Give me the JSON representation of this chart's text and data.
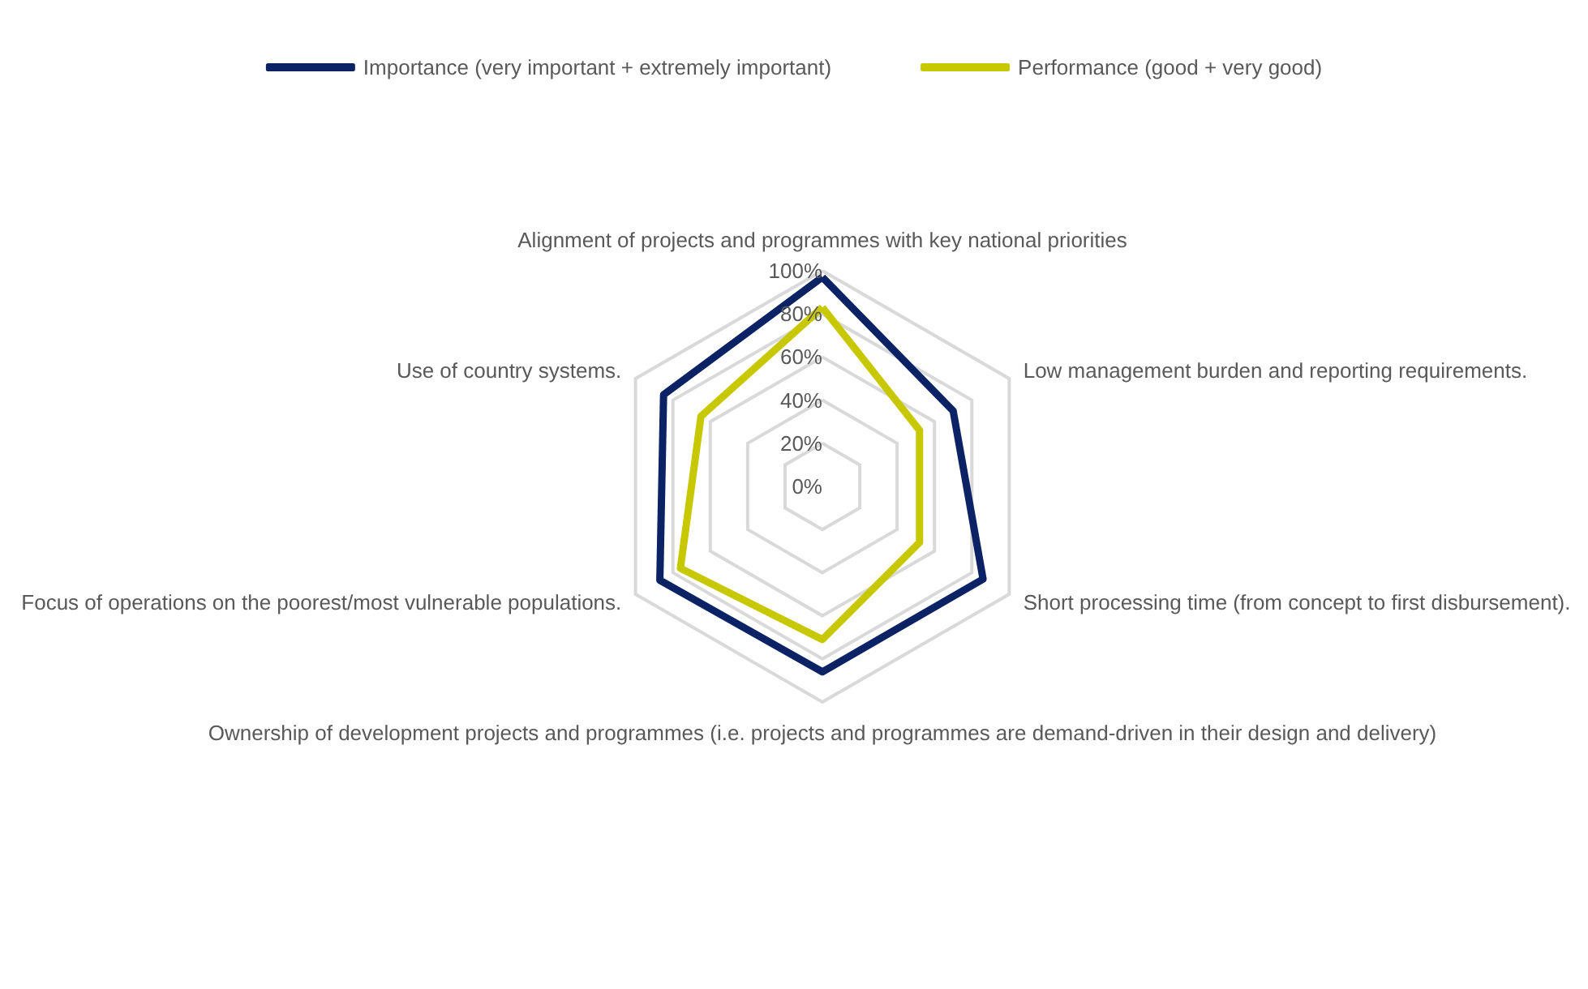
{
  "chart_data": {
    "type": "radar",
    "categories": [
      "Alignment of projects and programmes with key national priorities",
      "Low management burden and reporting requirements.",
      "Short processing time (from concept to first disbursement).",
      "Ownership of development projects and programmes (i.e. projects and programmes are demand-driven in their design and delivery)",
      "Focus of operations on the poorest/most vulnerable populations.",
      "Use of country systems."
    ],
    "series": [
      {
        "name": "Importance (very important + extremely important)",
        "color": "#0b2265",
        "values": [
          97,
          70,
          86,
          86,
          87,
          85
        ]
      },
      {
        "name": "Performance (good + very good)",
        "color": "#c8c800",
        "values": [
          83,
          52,
          52,
          71,
          76,
          65
        ]
      }
    ],
    "ylim": [
      0,
      100
    ],
    "yticks": [
      {
        "value": 0,
        "label": "0%"
      },
      {
        "value": 20,
        "label": "20%"
      },
      {
        "value": 40,
        "label": "40%"
      },
      {
        "value": 60,
        "label": "60%"
      },
      {
        "value": 80,
        "label": "80%"
      },
      {
        "value": 100,
        "label": "100%"
      }
    ],
    "grid": true,
    "legend": "top",
    "marker": "none",
    "line_style": "solid"
  }
}
